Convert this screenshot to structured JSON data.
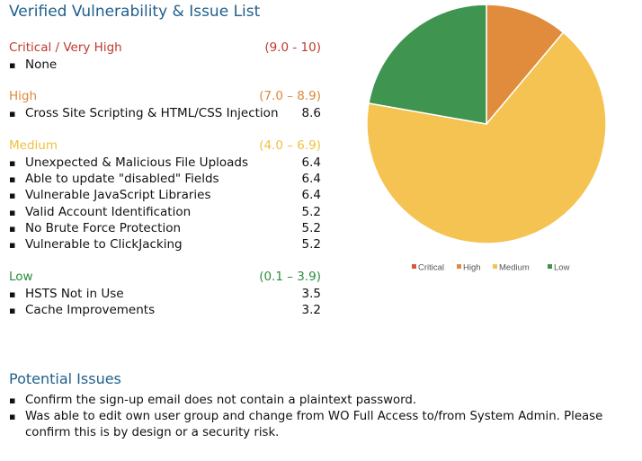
{
  "title": "Verified Vulnerability & Issue List",
  "sections": [
    {
      "name": "Critical / Very High",
      "range": "(9.0 - 10)",
      "color": "#c0392b",
      "items": [
        {
          "label": "None",
          "score": ""
        }
      ]
    },
    {
      "name": "High",
      "range": "(7.0 – 8.9)",
      "color": "#e0873a",
      "items": [
        {
          "label": "Cross Site Scripting & HTML/CSS Injection",
          "score": "8.6"
        }
      ]
    },
    {
      "name": "Medium",
      "range": "(4.0 – 6.9)",
      "color": "#f0c040",
      "items": [
        {
          "label": "Unexpected & Malicious File Uploads",
          "score": "6.4"
        },
        {
          "label": "Able to update \"disabled\" Fields",
          "score": "6.4"
        },
        {
          "label": "Vulnerable JavaScript Libraries",
          "score": "6.4"
        },
        {
          "label": "Valid Account Identification",
          "score": "5.2"
        },
        {
          "label": "No Brute Force Protection",
          "score": "5.2"
        },
        {
          "label": "Vulnerable to ClickJacking",
          "score": "5.2"
        }
      ]
    },
    {
      "name": "Low",
      "range": "(0.1 – 3.9)",
      "color": "#2e8b3e",
      "items": [
        {
          "label": "HSTS Not in Use",
          "score": "3.5"
        },
        {
          "label": "Cache Improvements",
          "score": "3.2"
        }
      ]
    }
  ],
  "potential_issues": {
    "title": "Potential Issues",
    "items": [
      "Confirm the sign-up email does not contain a plaintext password.",
      "Was able to edit own user group and change from WO Full Access to/from System Admin. Please confirm this is by design or a security risk."
    ]
  },
  "chart_data": {
    "type": "pie",
    "categories": [
      "Critical",
      "High",
      "Medium",
      "Low"
    ],
    "values": [
      0,
      1,
      6,
      2
    ],
    "colors": [
      "#d9553b",
      "#e08c3c",
      "#f4c352",
      "#3f9450"
    ],
    "legend_position": "bottom"
  }
}
